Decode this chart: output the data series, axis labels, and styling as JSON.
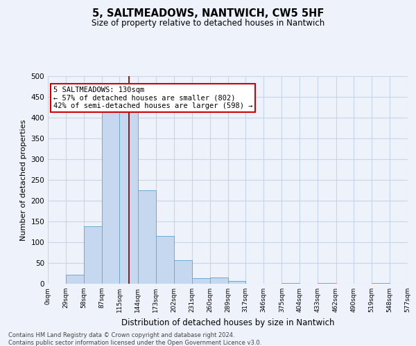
{
  "title": "5, SALTMEADOWS, NANTWICH, CW5 5HF",
  "subtitle": "Size of property relative to detached houses in Nantwich",
  "xlabel": "Distribution of detached houses by size in Nantwich",
  "ylabel": "Number of detached properties",
  "bins": [
    0,
    29,
    58,
    87,
    115,
    144,
    173,
    202,
    231,
    260,
    289,
    317,
    346,
    375,
    404,
    433,
    462,
    490,
    519,
    548,
    577
  ],
  "bar_heights": [
    0,
    22,
    139,
    415,
    415,
    225,
    115,
    57,
    14,
    15,
    7,
    0,
    0,
    1,
    0,
    1,
    0,
    0,
    1,
    0
  ],
  "bar_color": "#c5d8f0",
  "bar_edgecolor": "#6aaad4",
  "grid_color": "#c8d4e8",
  "background_color": "#eef2fb",
  "property_line_x": 130,
  "property_line_color": "#990000",
  "annotation_line1": "5 SALTMEADOWS: 130sqm",
  "annotation_line2": "← 57% of detached houses are smaller (802)",
  "annotation_line3": "42% of semi-detached houses are larger (598) →",
  "annotation_box_edgecolor": "#cc0000",
  "annotation_box_facecolor": "#ffffff",
  "ylim": [
    0,
    500
  ],
  "yticks": [
    0,
    50,
    100,
    150,
    200,
    250,
    300,
    350,
    400,
    450,
    500
  ],
  "footer_line1": "Contains HM Land Registry data © Crown copyright and database right 2024.",
  "footer_line2": "Contains public sector information licensed under the Open Government Licence v3.0.",
  "tick_labels": [
    "0sqm",
    "29sqm",
    "58sqm",
    "87sqm",
    "115sqm",
    "144sqm",
    "173sqm",
    "202sqm",
    "231sqm",
    "260sqm",
    "289sqm",
    "317sqm",
    "346sqm",
    "375sqm",
    "404sqm",
    "433sqm",
    "462sqm",
    "490sqm",
    "519sqm",
    "548sqm",
    "577sqm"
  ]
}
